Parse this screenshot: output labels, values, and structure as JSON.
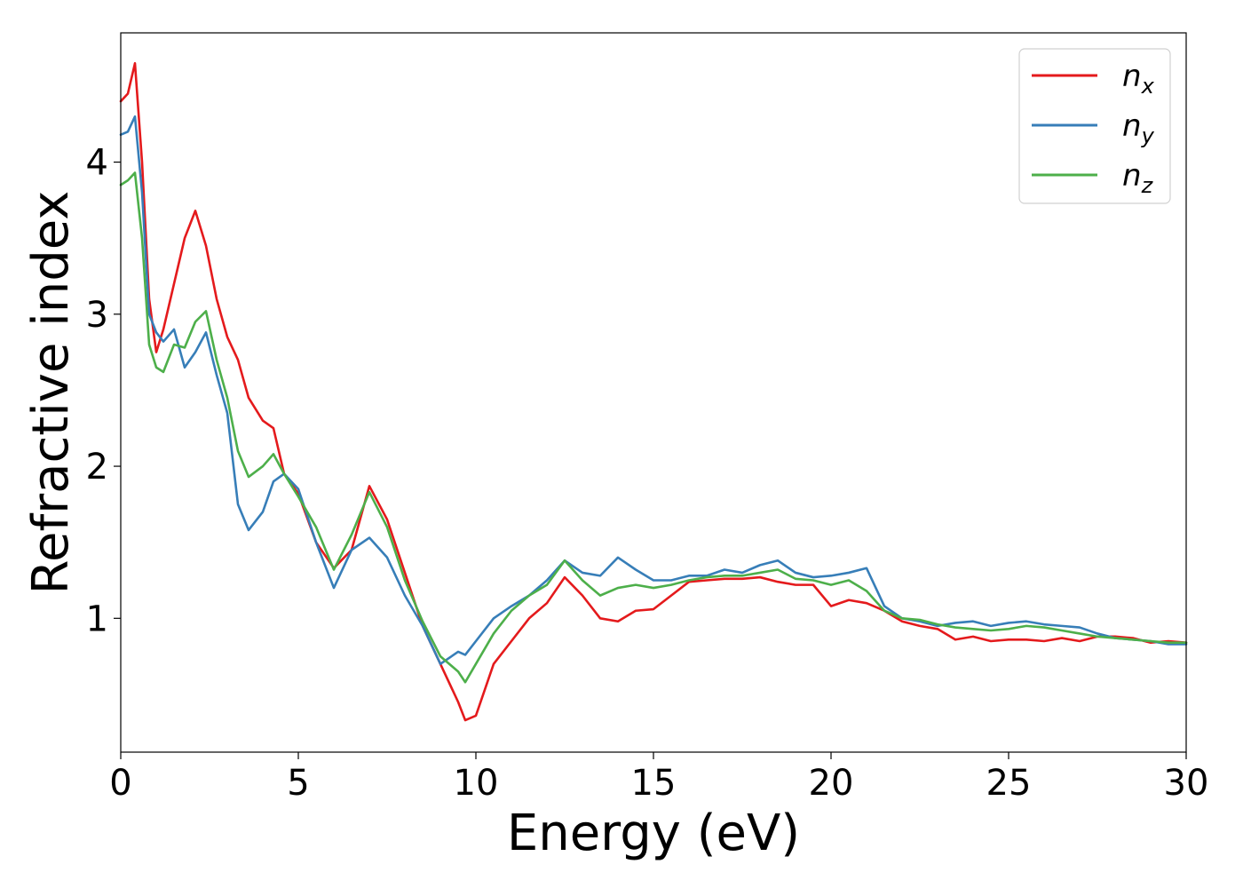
{
  "chart_data": {
    "type": "line",
    "xlabel": "Energy (eV)",
    "ylabel": "Refractive index",
    "xlim": [
      0,
      30
    ],
    "ylim": [
      0.12,
      4.85
    ],
    "x_ticks": [
      0,
      5,
      10,
      15,
      20,
      25,
      30
    ],
    "y_ticks": [
      1,
      2,
      3,
      4
    ],
    "grid": false,
    "legend_position": "top-right",
    "series": [
      {
        "name": "n_x",
        "color": "#e41a1c",
        "x": [
          0.0,
          0.2,
          0.4,
          0.6,
          0.8,
          1.0,
          1.2,
          1.5,
          1.8,
          2.1,
          2.4,
          2.7,
          3.0,
          3.3,
          3.6,
          4.0,
          4.3,
          4.6,
          5.0,
          5.5,
          6.0,
          6.5,
          7.0,
          7.5,
          8.0,
          8.5,
          9.0,
          9.5,
          9.7,
          10.0,
          10.5,
          11.0,
          11.5,
          12.0,
          12.5,
          13.0,
          13.5,
          14.0,
          14.5,
          15.0,
          15.5,
          16.0,
          16.5,
          17.0,
          17.5,
          18.0,
          18.5,
          19.0,
          19.5,
          20.0,
          20.5,
          21.0,
          21.5,
          22.0,
          22.5,
          23.0,
          23.5,
          24.0,
          24.5,
          25.0,
          25.5,
          26.0,
          26.5,
          27.0,
          27.5,
          28.0,
          28.5,
          29.0,
          29.5,
          30.0
        ],
        "values": [
          4.4,
          4.45,
          4.65,
          4.0,
          3.1,
          2.75,
          2.9,
          3.2,
          3.5,
          3.68,
          3.45,
          3.1,
          2.85,
          2.7,
          2.45,
          2.3,
          2.25,
          1.95,
          1.82,
          1.5,
          1.33,
          1.45,
          1.87,
          1.65,
          1.3,
          0.95,
          0.7,
          0.45,
          0.33,
          0.36,
          0.7,
          0.85,
          1.0,
          1.1,
          1.27,
          1.15,
          1.0,
          0.98,
          1.05,
          1.06,
          1.15,
          1.24,
          1.25,
          1.26,
          1.26,
          1.27,
          1.24,
          1.22,
          1.22,
          1.08,
          1.12,
          1.1,
          1.05,
          0.98,
          0.95,
          0.93,
          0.86,
          0.88,
          0.85,
          0.86,
          0.86,
          0.85,
          0.87,
          0.85,
          0.88,
          0.88,
          0.87,
          0.84,
          0.85,
          0.84
        ]
      },
      {
        "name": "n_y",
        "color": "#377eb8",
        "x": [
          0.0,
          0.2,
          0.4,
          0.6,
          0.8,
          1.0,
          1.2,
          1.5,
          1.8,
          2.1,
          2.4,
          2.7,
          3.0,
          3.3,
          3.6,
          4.0,
          4.3,
          4.6,
          5.0,
          5.5,
          6.0,
          6.5,
          7.0,
          7.5,
          8.0,
          8.5,
          9.0,
          9.5,
          9.7,
          10.0,
          10.5,
          11.0,
          11.5,
          12.0,
          12.5,
          13.0,
          13.5,
          14.0,
          14.5,
          15.0,
          15.5,
          16.0,
          16.5,
          17.0,
          17.5,
          18.0,
          18.5,
          19.0,
          19.5,
          20.0,
          20.5,
          21.0,
          21.5,
          22.0,
          22.5,
          23.0,
          23.5,
          24.0,
          24.5,
          25.0,
          25.5,
          26.0,
          26.5,
          27.0,
          27.5,
          28.0,
          28.5,
          29.0,
          29.5,
          30.0
        ],
        "values": [
          4.18,
          4.2,
          4.3,
          3.8,
          3.0,
          2.88,
          2.82,
          2.9,
          2.65,
          2.75,
          2.88,
          2.6,
          2.35,
          1.75,
          1.58,
          1.7,
          1.9,
          1.95,
          1.85,
          1.5,
          1.2,
          1.45,
          1.53,
          1.4,
          1.15,
          0.95,
          0.7,
          0.78,
          0.76,
          0.85,
          1.0,
          1.08,
          1.15,
          1.25,
          1.38,
          1.3,
          1.28,
          1.4,
          1.32,
          1.25,
          1.25,
          1.28,
          1.28,
          1.32,
          1.3,
          1.35,
          1.38,
          1.3,
          1.27,
          1.28,
          1.3,
          1.33,
          1.08,
          1.0,
          0.98,
          0.95,
          0.97,
          0.98,
          0.95,
          0.97,
          0.98,
          0.96,
          0.95,
          0.94,
          0.9,
          0.87,
          0.86,
          0.85,
          0.83,
          0.83
        ]
      },
      {
        "name": "n_z",
        "color": "#4daf4a",
        "x": [
          0.0,
          0.2,
          0.4,
          0.6,
          0.8,
          1.0,
          1.2,
          1.5,
          1.8,
          2.1,
          2.4,
          2.7,
          3.0,
          3.3,
          3.6,
          4.0,
          4.3,
          4.6,
          5.0,
          5.5,
          6.0,
          6.5,
          7.0,
          7.5,
          8.0,
          8.5,
          9.0,
          9.5,
          9.7,
          10.0,
          10.5,
          11.0,
          11.5,
          12.0,
          12.5,
          13.0,
          13.5,
          14.0,
          14.5,
          15.0,
          15.5,
          16.0,
          16.5,
          17.0,
          17.5,
          18.0,
          18.5,
          19.0,
          19.5,
          20.0,
          20.5,
          21.0,
          21.5,
          22.0,
          22.5,
          23.0,
          23.5,
          24.0,
          24.5,
          25.0,
          25.5,
          26.0,
          26.5,
          27.0,
          27.5,
          28.0,
          28.5,
          29.0,
          29.5,
          30.0
        ],
        "values": [
          3.85,
          3.88,
          3.93,
          3.5,
          2.8,
          2.65,
          2.62,
          2.8,
          2.78,
          2.95,
          3.02,
          2.7,
          2.45,
          2.1,
          1.93,
          2.0,
          2.08,
          1.95,
          1.8,
          1.6,
          1.32,
          1.55,
          1.83,
          1.6,
          1.25,
          0.98,
          0.75,
          0.65,
          0.58,
          0.7,
          0.9,
          1.05,
          1.15,
          1.22,
          1.38,
          1.25,
          1.15,
          1.2,
          1.22,
          1.2,
          1.22,
          1.25,
          1.27,
          1.28,
          1.28,
          1.3,
          1.32,
          1.26,
          1.25,
          1.22,
          1.25,
          1.18,
          1.05,
          1.0,
          0.99,
          0.96,
          0.94,
          0.93,
          0.92,
          0.93,
          0.95,
          0.94,
          0.92,
          0.9,
          0.88,
          0.87,
          0.86,
          0.85,
          0.84,
          0.84
        ]
      }
    ]
  },
  "legend": {
    "items": [
      {
        "label_base": "n",
        "label_sub": "x"
      },
      {
        "label_base": "n",
        "label_sub": "y"
      },
      {
        "label_base": "n",
        "label_sub": "z"
      }
    ]
  }
}
